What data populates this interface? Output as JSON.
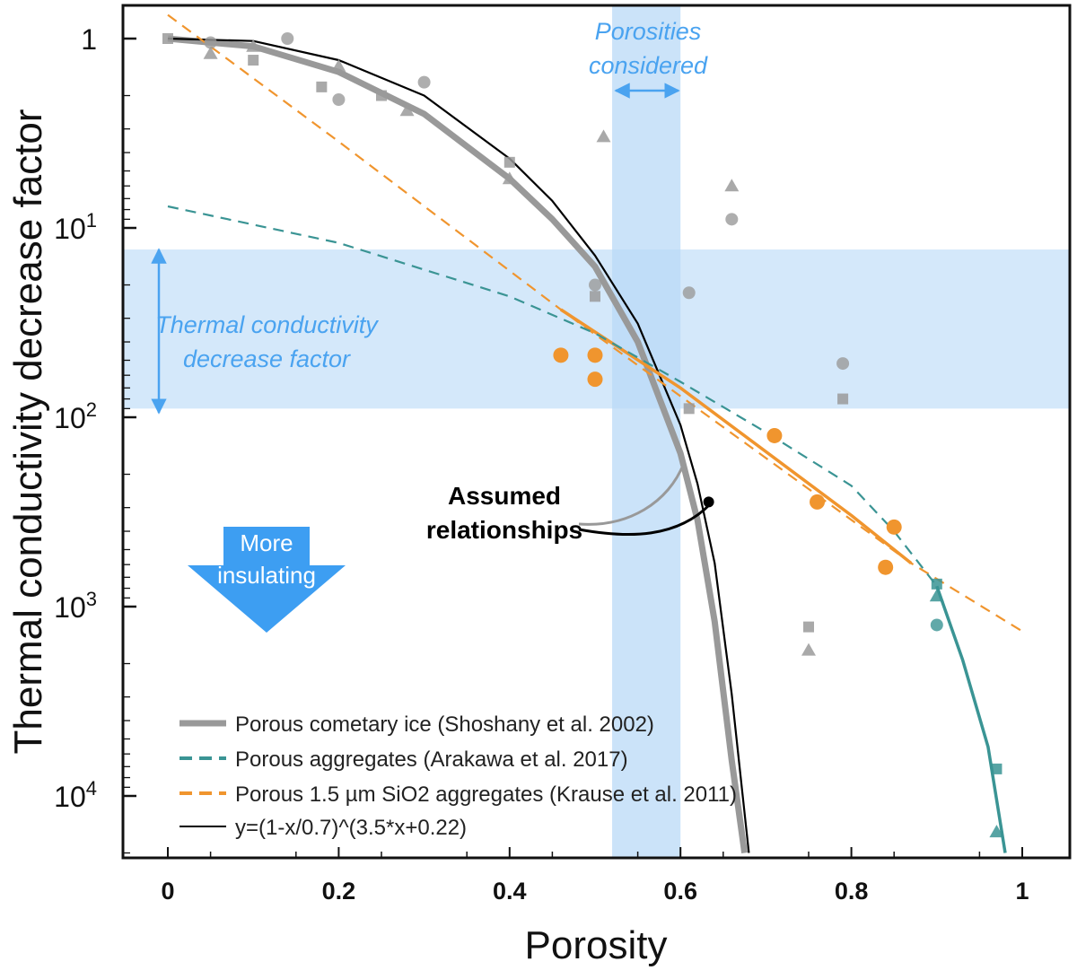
{
  "chart_data": {
    "type": "scatter",
    "title": "",
    "xlabel": "Porosity",
    "ylabel": "Thermal conductivity decrease factor",
    "xlim": [
      -0.05,
      1.05
    ],
    "ylim_log10": [
      0,
      4.3
    ],
    "y_scale": "log (inverted: factor increases downward)",
    "x_ticks": [
      "0",
      "0.2",
      "0.4",
      "0.6",
      "0.8",
      "1"
    ],
    "x_tick_values": [
      0,
      0.2,
      0.4,
      0.6,
      0.8,
      1.0
    ],
    "y_ticks": [
      {
        "value": 1,
        "base": "1",
        "exp": ""
      },
      {
        "value": 10,
        "base": "10",
        "exp": "1"
      },
      {
        "value": 100,
        "base": "10",
        "exp": "2"
      },
      {
        "value": 1000,
        "base": "10",
        "exp": "3"
      },
      {
        "value": 10000,
        "base": "10",
        "exp": "4"
      }
    ],
    "bands": {
      "porosity_range": [
        0.52,
        0.6
      ],
      "factor_range": [
        13,
        90
      ]
    },
    "annotations": {
      "porosities_line1": "Porosities",
      "porosities_line2": "considered",
      "tcdf_line1": "Thermal conductivity",
      "tcdf_line2": "decrease factor",
      "assumed_line1": "Assumed",
      "assumed_line2": "relationships",
      "arrow_line1": "More",
      "arrow_line2": "insulating"
    },
    "legend": [
      {
        "label": "Porous cometary ice (Shoshany et al. 2002)",
        "color": "#999999"
      },
      {
        "label": "Porous aggregates (Arakawa et al. 2017)",
        "color": "#3a9494"
      },
      {
        "label": "Porous 1.5 µm SiO2 aggregates (Krause et al. 2011)",
        "color": "#f0952e"
      },
      {
        "label": "y=(1-x/0.7)^(3.5*x+0.22)",
        "color": "#000000"
      }
    ],
    "assumed_point": {
      "x": 0.633,
      "y": 280
    },
    "series": [
      {
        "name": "Porous cometary ice (Shoshany et al. 2002) - model curve",
        "style": "line",
        "color": "#999999",
        "x": [
          0,
          0.1,
          0.2,
          0.3,
          0.4,
          0.45,
          0.5,
          0.55,
          0.6,
          0.62,
          0.64,
          0.66,
          0.675
        ],
        "y": [
          1.0,
          1.1,
          1.5,
          2.5,
          5.5,
          9,
          16,
          40,
          155,
          350,
          1200,
          6500,
          20000
        ]
      },
      {
        "name": "y=(1-x/0.7)^(3.5*x+0.22)",
        "style": "line",
        "color": "#000000",
        "x": [
          0,
          0.1,
          0.2,
          0.3,
          0.4,
          0.45,
          0.5,
          0.55,
          0.6,
          0.62,
          0.64,
          0.66,
          0.68
        ],
        "y": [
          1.0,
          1.03,
          1.3,
          2.0,
          4.3,
          7.2,
          14,
          32,
          110,
          225,
          590,
          2900,
          20000
        ]
      },
      {
        "name": "Porous 1.5 µm SiO2 aggregates (Krause et al. 2011) - fit",
        "style": "line",
        "color": "#f0952e",
        "x": [
          0.46,
          0.6,
          0.8,
          0.87
        ],
        "y": [
          27,
          70,
          330,
          590
        ]
      },
      {
        "name": "Krause et al. 2011 - extrapolation",
        "style": "dashed",
        "color": "#f0952e",
        "x": [
          0.0,
          0.2,
          0.46,
          0.87,
          1.0
        ],
        "y": [
          0.75,
          3.5,
          27,
          590,
          1350
        ]
      },
      {
        "name": "Arakawa et al. 2017 - extrapolation",
        "style": "dashed",
        "color": "#3a9494",
        "x": [
          0.0,
          0.2,
          0.4,
          0.5,
          0.6,
          0.7,
          0.8,
          0.85,
          0.9
        ],
        "y": [
          7.7,
          12,
          23,
          36,
          65,
          120,
          230,
          400,
          780
        ]
      },
      {
        "name": "Arakawa et al. 2017 - fit",
        "style": "line",
        "color": "#3a9494",
        "x": [
          0.9,
          0.93,
          0.96,
          0.98
        ],
        "y": [
          780,
          1900,
          5500,
          20000
        ]
      },
      {
        "name": "Krause et al. 2011 - data",
        "style": "points",
        "marker": "circle",
        "color": "#f0952e",
        "x": [
          0.46,
          0.5,
          0.5,
          0.71,
          0.76,
          0.84,
          0.85
        ],
        "y": [
          47,
          47,
          63,
          125,
          280,
          620,
          380
        ]
      },
      {
        "name": "Arakawa et al. 2017 - data",
        "style": "points",
        "marker": "mixed",
        "color": "#3a9494",
        "x": [
          0.9,
          0.9,
          0.9,
          0.97,
          0.97
        ],
        "y": [
          760,
          880,
          1250,
          7200,
          15500
        ]
      },
      {
        "name": "Shoshany et al. 2002 - simulation points (grey)",
        "style": "points",
        "marker": "mixed",
        "color": "#9a9a9a",
        "x": [
          0,
          0.05,
          0.05,
          0.1,
          0.1,
          0.14,
          0.18,
          0.2,
          0.2,
          0.25,
          0.28,
          0.3,
          0.4,
          0.4,
          0.5,
          0.5,
          0.51,
          0.61,
          0.61,
          0.66,
          0.66,
          0.75,
          0.75,
          0.79,
          0.79
        ],
        "y": [
          1,
          1.2,
          1.05,
          1.3,
          1.1,
          1.0,
          1.8,
          1.4,
          2.1,
          2.0,
          2.4,
          1.7,
          4.5,
          5.5,
          20,
          23,
          3.3,
          22,
          90,
          6.0,
          9.0,
          1280,
          1700,
          52,
          80
        ]
      }
    ]
  }
}
